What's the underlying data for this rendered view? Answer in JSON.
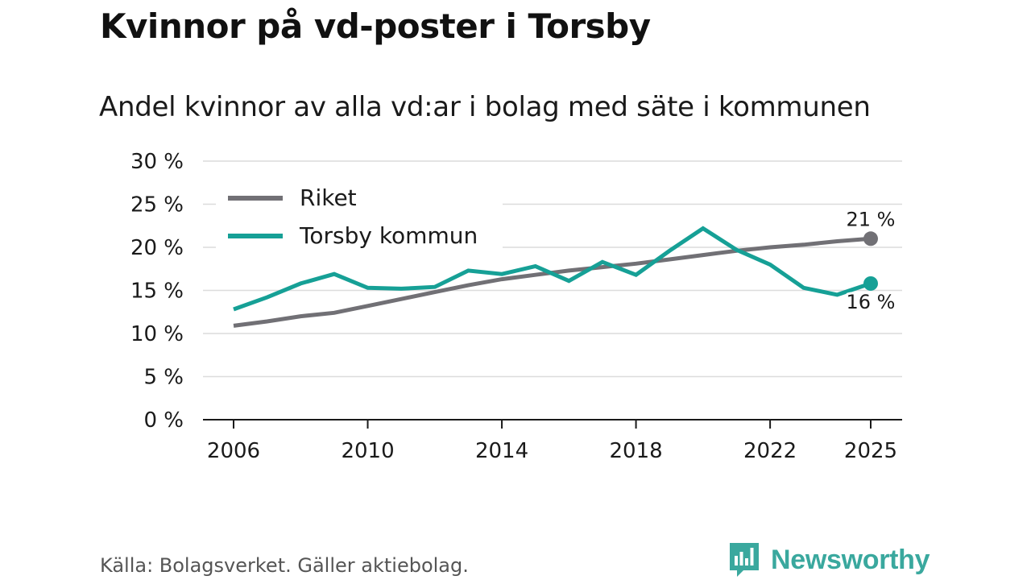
{
  "title": "Kvinnor på vd-poster i Torsby",
  "subtitle": "Andel kvinnor av alla vd:ar i bolag med säte i kommunen",
  "source": "Källa: Bolagsverket. Gäller aktiebolag.",
  "brand": {
    "name": "Newsworthy",
    "icon": "newsworthy-logo-icon",
    "color": "#3aa89e"
  },
  "chart_data": {
    "type": "line",
    "title": "Kvinnor på vd-poster i Torsby",
    "subtitle": "Andel kvinnor av alla vd:ar i bolag med säte i kommunen",
    "xlabel": "",
    "ylabel": "",
    "xlim": [
      2006,
      2025
    ],
    "ylim": [
      0,
      30
    ],
    "x_ticks": [
      2006,
      2010,
      2014,
      2018,
      2022,
      2025
    ],
    "x_tick_labels": [
      "2006",
      "2010",
      "2014",
      "2018",
      "2022",
      "2025"
    ],
    "y_ticks": [
      0,
      5,
      10,
      15,
      20,
      25,
      30
    ],
    "y_tick_labels": [
      "0 %",
      "5 %",
      "10 %",
      "15 %",
      "20 %",
      "25 %",
      "30 %"
    ],
    "grid": true,
    "legend_position": "top-left",
    "x": [
      2006,
      2007,
      2008,
      2009,
      2010,
      2011,
      2012,
      2013,
      2014,
      2015,
      2016,
      2017,
      2018,
      2019,
      2020,
      2021,
      2022,
      2023,
      2024,
      2025
    ],
    "series": [
      {
        "name": "Riket",
        "color": "#717075",
        "values": [
          10.9,
          11.4,
          12.0,
          12.4,
          13.2,
          14.0,
          14.8,
          15.6,
          16.3,
          16.8,
          17.3,
          17.7,
          18.1,
          18.6,
          19.1,
          19.6,
          20.0,
          20.3,
          20.7,
          21.0
        ],
        "end_label": "21 %"
      },
      {
        "name": "Torsby kommun",
        "color": "#16a096",
        "values": [
          12.8,
          14.2,
          15.8,
          16.9,
          15.3,
          15.2,
          15.4,
          17.3,
          16.9,
          17.8,
          16.1,
          18.3,
          16.8,
          19.6,
          22.2,
          19.7,
          18.0,
          15.3,
          14.5,
          15.8
        ],
        "end_label": "16 %"
      }
    ]
  }
}
